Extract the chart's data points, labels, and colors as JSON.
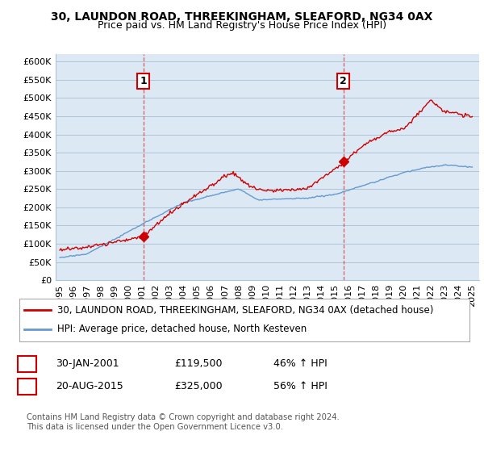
{
  "title": "30, LAUNDON ROAD, THREEKINGHAM, SLEAFORD, NG34 0AX",
  "subtitle": "Price paid vs. HM Land Registry's House Price Index (HPI)",
  "bg_color": "#ffffff",
  "plot_bg_color": "#dce9f5",
  "grid_color": "#b0c4d8",
  "ylim": [
    0,
    620000
  ],
  "yticks": [
    0,
    50000,
    100000,
    150000,
    200000,
    250000,
    300000,
    350000,
    400000,
    450000,
    500000,
    550000,
    600000
  ],
  "ytick_labels": [
    "£0",
    "£50K",
    "£100K",
    "£150K",
    "£200K",
    "£250K",
    "£300K",
    "£350K",
    "£400K",
    "£450K",
    "£500K",
    "£550K",
    "£600K"
  ],
  "xlim_start": 1994.7,
  "xlim_end": 2025.5,
  "xtick_years": [
    1995,
    1996,
    1997,
    1998,
    1999,
    2000,
    2001,
    2002,
    2003,
    2004,
    2005,
    2006,
    2007,
    2008,
    2009,
    2010,
    2011,
    2012,
    2013,
    2014,
    2015,
    2016,
    2017,
    2018,
    2019,
    2020,
    2021,
    2022,
    2023,
    2024,
    2025
  ],
  "red_line_color": "#cc0000",
  "blue_line_color": "#6699cc",
  "transaction1_x": 2001.08,
  "transaction1_y": 119500,
  "transaction1_label": "1",
  "transaction2_x": 2015.63,
  "transaction2_y": 325000,
  "transaction2_label": "2",
  "vline_color": "#cc0000",
  "vline_alpha": 0.6,
  "legend_red_label": "30, LAUNDON ROAD, THREEKINGHAM, SLEAFORD, NG34 0AX (detached house)",
  "legend_blue_label": "HPI: Average price, detached house, North Kesteven",
  "table_row1": [
    "1",
    "30-JAN-2001",
    "£119,500",
    "46% ↑ HPI"
  ],
  "table_row2": [
    "2",
    "20-AUG-2015",
    "£325,000",
    "56% ↑ HPI"
  ],
  "footer": "Contains HM Land Registry data © Crown copyright and database right 2024.\nThis data is licensed under the Open Government Licence v3.0.",
  "title_fontsize": 10,
  "subtitle_fontsize": 9,
  "tick_fontsize": 8,
  "legend_fontsize": 8.5,
  "table_fontsize": 9
}
